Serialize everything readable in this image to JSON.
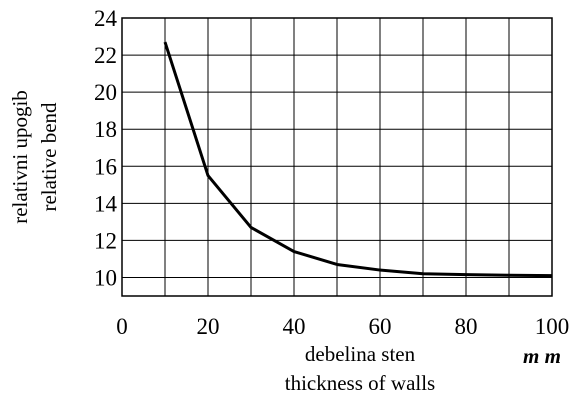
{
  "chart_data": {
    "type": "line",
    "x": [
      10,
      20,
      30,
      40,
      50,
      60,
      70,
      80,
      90,
      100
    ],
    "series": [
      {
        "values": [
          22.7,
          15.5,
          12.7,
          11.4,
          10.7,
          10.4,
          10.2,
          10.15,
          10.12,
          10.1
        ]
      }
    ],
    "xlim": [
      0,
      100
    ],
    "ylim": [
      9,
      24
    ],
    "x_ticks": [
      0,
      20,
      40,
      60,
      80,
      100
    ],
    "y_ticks": [
      10,
      12,
      14,
      16,
      18,
      20,
      22,
      24
    ],
    "x_grid_step": 10,
    "y_grid_step": 2,
    "grid": true,
    "xlabel_line1": "debelina sten",
    "xlabel_line2": "thickness of walls",
    "x_unit": "m m",
    "ylabel_line1": "relativni upogib",
    "ylabel_line2": "relative bend",
    "line_color": "#000000"
  }
}
